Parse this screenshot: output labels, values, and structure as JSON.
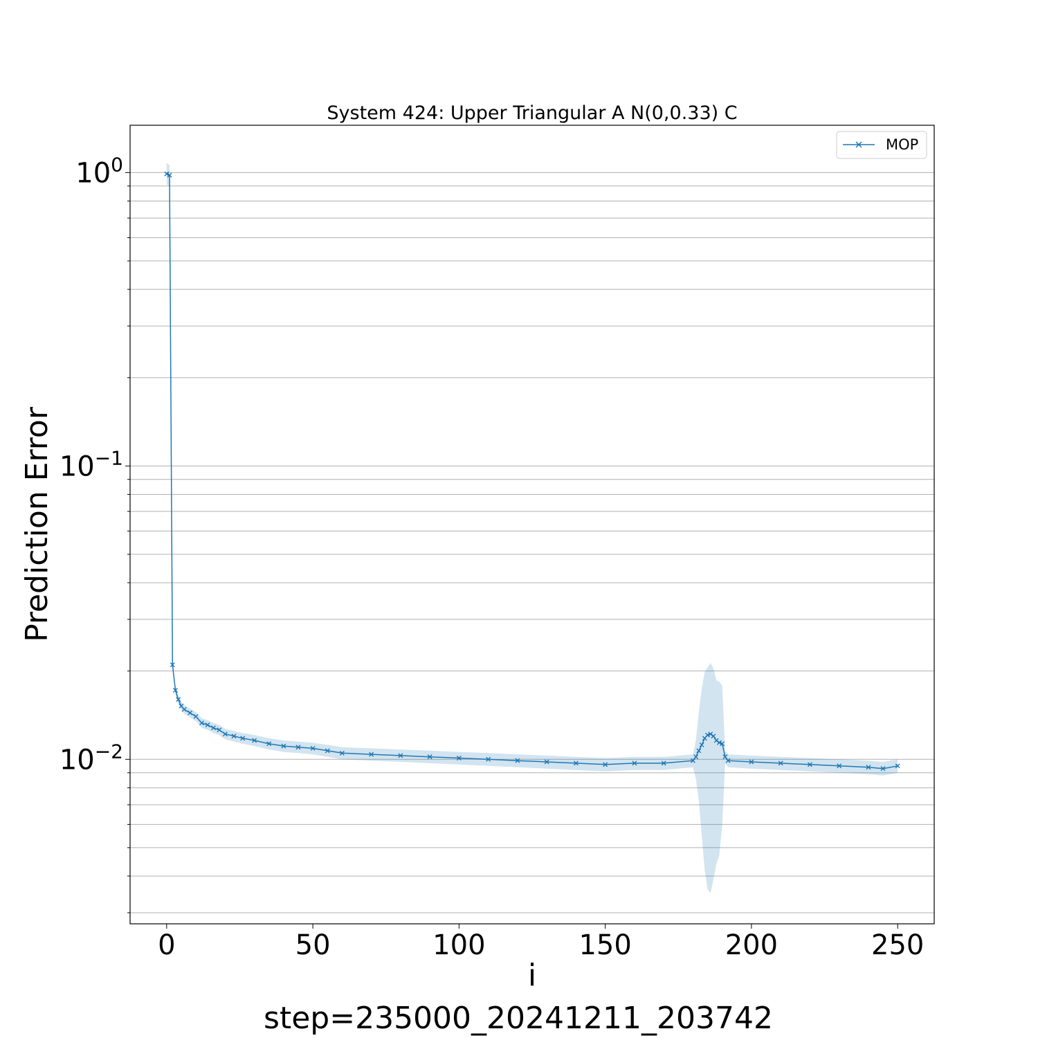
{
  "chart_data": {
    "type": "line",
    "title": "System 424: Upper Triangular A N(0,0.33) C",
    "xlabel": "i",
    "ylabel": "Prediction Error",
    "footer": "step=235000_20241211_203742",
    "xlim": [
      -12.5,
      262.5
    ],
    "ylim": [
      0.00275,
      1.45
    ],
    "yscale": "log",
    "grid": "y-major-and-minor",
    "legend_position": "top-right",
    "xticks": [
      0,
      50,
      100,
      150,
      200,
      250
    ],
    "xtick_labels": [
      "0",
      "50",
      "100",
      "150",
      "200",
      "250"
    ],
    "yticks": [
      0.01,
      0.1,
      1
    ],
    "ytick_labels": [
      {
        "base": "10",
        "exp": "−2"
      },
      {
        "base": "10",
        "exp": "−1"
      },
      {
        "base": "10",
        "exp": "0"
      }
    ],
    "series": [
      {
        "name": "MOP",
        "color": "#1f77b4",
        "band_color": "#1f77b4",
        "marker": "x",
        "x": [
          0,
          1,
          2,
          3,
          4,
          5,
          6,
          8,
          10,
          12,
          14,
          16,
          18,
          20,
          23,
          26,
          30,
          35,
          40,
          45,
          50,
          55,
          60,
          70,
          80,
          90,
          100,
          110,
          120,
          130,
          140,
          150,
          160,
          170,
          180,
          181,
          182,
          183,
          184,
          185,
          186,
          187,
          188,
          189,
          190,
          191,
          192,
          200,
          210,
          220,
          230,
          240,
          245,
          250
        ],
        "y": [
          0.99,
          0.98,
          0.021,
          0.0172,
          0.016,
          0.0152,
          0.0148,
          0.0144,
          0.014,
          0.0133,
          0.0131,
          0.0128,
          0.0126,
          0.0122,
          0.012,
          0.0118,
          0.0116,
          0.0113,
          0.0111,
          0.011,
          0.0109,
          0.0107,
          0.0105,
          0.0104,
          0.0103,
          0.0102,
          0.0101,
          0.01,
          0.0099,
          0.0098,
          0.0097,
          0.0096,
          0.0097,
          0.0097,
          0.0099,
          0.0102,
          0.0107,
          0.0112,
          0.0118,
          0.0121,
          0.0122,
          0.012,
          0.0116,
          0.0114,
          0.0113,
          0.0102,
          0.0099,
          0.0098,
          0.0097,
          0.0096,
          0.0095,
          0.0094,
          0.0093,
          0.0095
        ],
        "lower": [
          0.91,
          0.9,
          0.0205,
          0.0167,
          0.0155,
          0.0147,
          0.0143,
          0.0139,
          0.0135,
          0.0128,
          0.0126,
          0.0123,
          0.0121,
          0.0117,
          0.0115,
          0.0113,
          0.0111,
          0.0108,
          0.0106,
          0.0105,
          0.0104,
          0.0102,
          0.01,
          0.0099,
          0.0098,
          0.0097,
          0.0096,
          0.0095,
          0.0094,
          0.0093,
          0.0092,
          0.0091,
          0.0092,
          0.0092,
          0.0094,
          0.0086,
          0.0072,
          0.0055,
          0.0042,
          0.0036,
          0.0035,
          0.0039,
          0.0044,
          0.0047,
          0.006,
          0.0097,
          0.0094,
          0.0093,
          0.0092,
          0.0091,
          0.009,
          0.0089,
          0.0088,
          0.009
        ],
        "upper": [
          1.08,
          1.06,
          0.0215,
          0.0177,
          0.0165,
          0.0157,
          0.0153,
          0.0149,
          0.0145,
          0.0138,
          0.0136,
          0.0133,
          0.0131,
          0.0127,
          0.0125,
          0.0123,
          0.0121,
          0.0118,
          0.0116,
          0.0115,
          0.0114,
          0.0112,
          0.011,
          0.0109,
          0.0108,
          0.0107,
          0.0106,
          0.0105,
          0.0104,
          0.0103,
          0.0102,
          0.0101,
          0.0102,
          0.0102,
          0.0104,
          0.0116,
          0.0145,
          0.0175,
          0.0198,
          0.0206,
          0.0213,
          0.0204,
          0.0186,
          0.0184,
          0.0178,
          0.0107,
          0.0104,
          0.0103,
          0.0102,
          0.0101,
          0.01,
          0.0099,
          0.0098,
          0.01
        ]
      }
    ]
  }
}
